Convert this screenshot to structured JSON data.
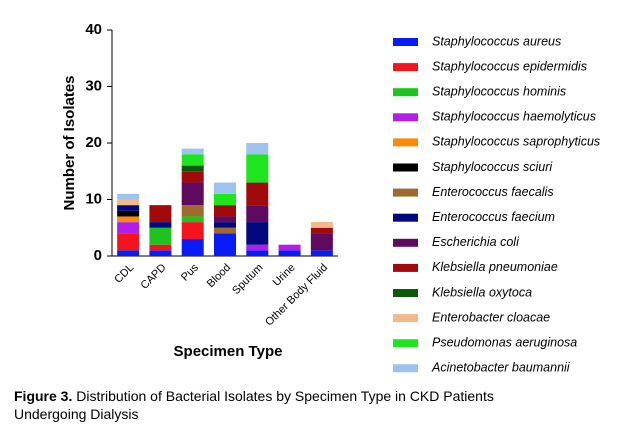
{
  "chart_data": {
    "type": "stacked_bar",
    "figure_label": "Figure 3.",
    "title": "Distribution of Bacterial Isolates by Specimen Type in CKD Patients Undergoing Dialysis",
    "xlabel": "Specimen Type",
    "ylabel": "Number of Isolates",
    "categories": [
      "CDL",
      "CAPD",
      "Pus",
      "Blood",
      "Sputum",
      "Urine",
      "Other Body Fluid"
    ],
    "ylim": [
      0,
      40
    ],
    "yticks": [
      0,
      10,
      20,
      30,
      40
    ],
    "series": [
      {
        "name": "Staphylococcus aureus",
        "color": "#0a1cf5",
        "values": [
          1,
          1,
          3,
          4,
          1,
          1,
          1
        ]
      },
      {
        "name": "Staphylococcus epidermidis",
        "color": "#f5141e",
        "values": [
          3,
          1,
          3,
          0,
          0,
          0,
          0
        ]
      },
      {
        "name": "Staphylococcus hominis",
        "color": "#1ec31e",
        "values": [
          0,
          3,
          1,
          0,
          0,
          0,
          0
        ]
      },
      {
        "name": "Staphylococcus haemolyticus",
        "color": "#b21ee6",
        "values": [
          2,
          0,
          0,
          0,
          1,
          1,
          0
        ]
      },
      {
        "name": "Staphylococcus saprophyticus",
        "color": "#fa8c0a",
        "values": [
          1,
          0,
          0,
          0,
          0,
          0,
          0
        ]
      },
      {
        "name": "Staphylococcus sciuri",
        "color": "#000000",
        "values": [
          1,
          0,
          0,
          0,
          0,
          0,
          0
        ]
      },
      {
        "name": "Enterococcus faecalis",
        "color": "#a0692d",
        "values": [
          0,
          0,
          2,
          1,
          0,
          0,
          0
        ]
      },
      {
        "name": "Enterococcus faecium",
        "color": "#00087d",
        "values": [
          1,
          1,
          0,
          1,
          4,
          0,
          0
        ]
      },
      {
        "name": "Escherichia coli",
        "color": "#5f0a5f",
        "values": [
          0,
          0,
          4,
          1,
          3,
          0,
          3
        ]
      },
      {
        "name": "Klebsiella pneumoniae",
        "color": "#a00a0a",
        "values": [
          0,
          3,
          2,
          2,
          4,
          0,
          1
        ]
      },
      {
        "name": "Klebsiella oxytoca",
        "color": "#0a5a0a",
        "values": [
          0,
          0,
          1,
          0,
          0,
          0,
          0
        ]
      },
      {
        "name": "Enterobacter cloacae",
        "color": "#f2b98a",
        "values": [
          1,
          0,
          0,
          0,
          0,
          0,
          1
        ]
      },
      {
        "name": "Pseudomonas aeruginosa",
        "color": "#1ee61e",
        "values": [
          0,
          0,
          2,
          2,
          5,
          0,
          0
        ]
      },
      {
        "name": "Acinetobacter baumannii",
        "color": "#9ec3ee",
        "values": [
          1,
          0,
          1,
          2,
          2,
          0,
          0
        ]
      }
    ]
  }
}
